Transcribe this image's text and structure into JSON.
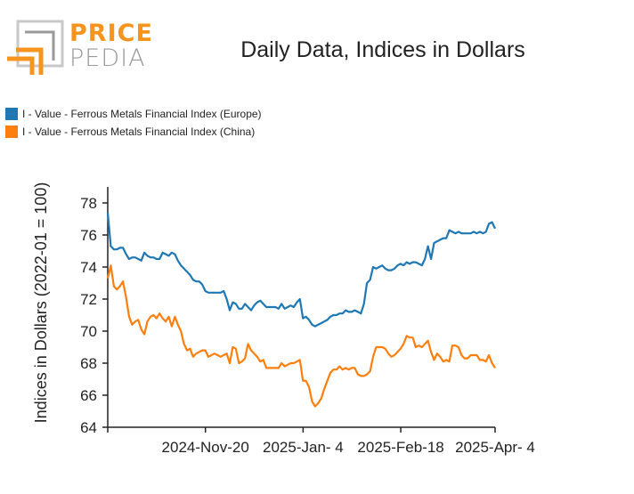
{
  "brand": {
    "word1": "PRICE",
    "word2": "PEDIA",
    "color_orange": "#f7941d",
    "color_gray": "#9a9a9a"
  },
  "chart_data": {
    "type": "line",
    "title": "Daily Data, Indices in Dollars",
    "xlabel": "",
    "ylabel": "Indices in Dollars (2022-01 = 100)",
    "ylim": [
      64,
      79
    ],
    "yticks": [
      64,
      66,
      68,
      70,
      72,
      74,
      76,
      78
    ],
    "xlim": [
      0,
      115
    ],
    "xticks": [
      {
        "pos": 29,
        "label": "2024-Nov-20"
      },
      {
        "pos": 58,
        "label": "2025-Jan- 4"
      },
      {
        "pos": 87,
        "label": "2025-Feb-18"
      },
      {
        "pos": 115,
        "label": "2025-Apr- 4"
      }
    ],
    "legend_position": "top-left",
    "series": [
      {
        "name": "I - Value - Ferrous Metals Financial Index (Europe)",
        "color": "#1f77b4",
        "values": [
          77.4,
          75.3,
          75.1,
          75.1,
          75.2,
          75.2,
          74.8,
          74.5,
          74.6,
          74.6,
          74.5,
          74.4,
          74.9,
          74.7,
          74.6,
          74.6,
          74.5,
          74.5,
          74.9,
          74.8,
          74.7,
          74.9,
          74.8,
          74.4,
          74.1,
          73.9,
          73.7,
          73.5,
          73.2,
          73.1,
          73.1,
          72.9,
          72.5,
          72.4,
          72.4,
          72.4,
          72.4,
          72.4,
          72.5,
          72.0,
          71.3,
          71.8,
          71.7,
          71.4,
          71.4,
          71.7,
          71.5,
          71.3,
          71.6,
          71.8,
          71.9,
          71.7,
          71.5,
          71.5,
          71.5,
          71.5,
          71.4,
          71.7,
          71.4,
          71.5,
          71.6,
          71.5,
          71.8,
          72.0,
          70.8,
          70.9,
          70.7,
          70.4,
          70.3,
          70.4,
          70.5,
          70.6,
          70.7,
          70.9,
          71.0,
          71.0,
          71.1,
          71.1,
          71.3,
          71.2,
          71.2,
          71.3,
          71.2,
          71.1,
          71.7,
          73.0,
          73.2,
          74.0,
          73.9,
          74.0,
          74.1,
          73.9,
          73.8,
          73.8,
          73.9,
          74.1,
          74.2,
          74.1,
          74.3,
          74.2,
          74.3,
          74.3,
          74.2,
          74.1,
          74.5,
          75.3,
          74.5,
          75.5,
          75.6,
          75.7,
          75.8,
          75.8,
          76.3,
          76.2,
          76.1,
          76.2,
          76.1,
          76.1,
          76.1,
          76.1,
          76.2,
          76.1,
          76.2,
          76.1,
          76.2,
          76.7,
          76.8,
          76.4
        ],
        "x_end": 115
      },
      {
        "name": "I - Value - Ferrous Metals Financial Index (China)",
        "color": "#ff7f0e",
        "values": [
          73.3,
          74.1,
          72.8,
          72.6,
          72.8,
          73.1,
          72.1,
          70.9,
          70.4,
          70.6,
          70.7,
          70.1,
          69.8,
          70.6,
          70.9,
          71.0,
          70.8,
          71.1,
          70.8,
          70.6,
          70.9,
          70.3,
          70.9,
          70.4,
          70.0,
          69.2,
          68.8,
          68.9,
          68.4,
          68.6,
          68.7,
          68.8,
          68.8,
          68.4,
          68.5,
          68.6,
          68.5,
          68.4,
          68.5,
          68.6,
          68.0,
          69.0,
          68.9,
          68.0,
          68.1,
          68.3,
          69.2,
          68.8,
          68.6,
          68.4,
          68.1,
          68.2,
          67.7,
          67.7,
          67.7,
          67.7,
          67.7,
          68.0,
          67.8,
          67.9,
          68.0,
          68.0,
          68.1,
          68.2,
          66.9,
          66.9,
          66.5,
          65.6,
          65.3,
          65.5,
          65.8,
          66.4,
          66.9,
          67.4,
          67.6,
          67.6,
          67.8,
          67.6,
          67.7,
          67.6,
          67.7,
          67.7,
          67.3,
          67.2,
          67.2,
          67.3,
          67.5,
          68.4,
          69.0,
          69.0,
          69.0,
          68.9,
          68.6,
          68.4,
          68.5,
          68.7,
          68.9,
          69.2,
          69.7,
          69.6,
          69.6,
          69.0,
          69.1,
          69.0,
          69.2,
          69.4,
          68.7,
          68.2,
          68.6,
          68.4,
          68.1,
          68.2,
          68.1,
          69.1,
          69.1,
          69.0,
          68.5,
          68.3,
          68.3,
          68.5,
          68.5,
          68.5,
          68.2,
          68.2,
          68.1,
          68.5,
          68.0,
          67.7
        ],
        "x_end": 115
      }
    ]
  }
}
